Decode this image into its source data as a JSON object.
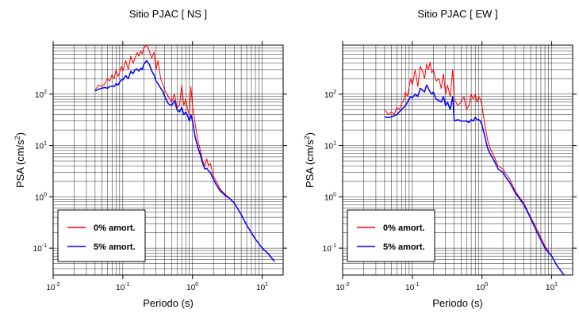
{
  "chart_data": [
    {
      "type": "line",
      "title": "Sitio PJAC [ NS ]",
      "xlabel": "Periodo (s)",
      "ylabel_main": "PSA (cm/s",
      "ylabel_sup": "2",
      "ylabel_end": ")",
      "xscale": "log",
      "yscale": "log",
      "xlim": [
        0.01,
        20
      ],
      "ylim": [
        0.03,
        900
      ],
      "grid": true,
      "legend_position": "bottom-left",
      "x_ticks": [
        {
          "base": "10",
          "exp": "-2",
          "value": 0.01
        },
        {
          "base": "10",
          "exp": "-1",
          "value": 0.1
        },
        {
          "base": "10",
          "exp": "0",
          "value": 1
        },
        {
          "base": "10",
          "exp": "1",
          "value": 10
        }
      ],
      "y_ticks": [
        {
          "base": "10",
          "exp": "-1",
          "value": 0.1
        },
        {
          "base": "10",
          "exp": "0",
          "value": 1
        },
        {
          "base": "10",
          "exp": "1",
          "value": 10
        },
        {
          "base": "10",
          "exp": "2",
          "value": 100
        }
      ],
      "series": [
        {
          "name": "0% amort.",
          "color": "#ff0000",
          "x": [
            0.04,
            0.045,
            0.05,
            0.055,
            0.06,
            0.065,
            0.07,
            0.075,
            0.08,
            0.085,
            0.09,
            0.095,
            0.1,
            0.11,
            0.12,
            0.13,
            0.14,
            0.15,
            0.16,
            0.17,
            0.18,
            0.19,
            0.2,
            0.22,
            0.24,
            0.26,
            0.28,
            0.3,
            0.32,
            0.35,
            0.38,
            0.4,
            0.45,
            0.5,
            0.55,
            0.6,
            0.65,
            0.7,
            0.75,
            0.8,
            0.85,
            0.9,
            0.95,
            1.0,
            1.1,
            1.2,
            1.3,
            1.4,
            1.5,
            1.6,
            1.7,
            1.8,
            2.0,
            2.2,
            2.5,
            3.0,
            3.5,
            4.0,
            5.0,
            6.0,
            8.0,
            10.0,
            12.0,
            15.0
          ],
          "y": [
            120,
            150,
            140,
            160,
            200,
            180,
            240,
            200,
            300,
            220,
            260,
            350,
            280,
            450,
            300,
            550,
            400,
            500,
            650,
            550,
            700,
            600,
            800,
            900,
            700,
            500,
            650,
            300,
            450,
            200,
            150,
            120,
            90,
            70,
            100,
            55,
            60,
            150,
            60,
            80,
            50,
            40,
            140,
            60,
            25,
            12,
            8,
            5,
            4,
            5.5,
            4,
            4.5,
            2.5,
            2.0,
            1.4,
            1.1,
            0.9,
            0.75,
            0.45,
            0.28,
            0.15,
            0.1,
            0.08,
            0.055
          ]
        },
        {
          "name": "5% amort.",
          "color": "#0000ff",
          "x": [
            0.04,
            0.045,
            0.05,
            0.055,
            0.06,
            0.065,
            0.07,
            0.075,
            0.08,
            0.085,
            0.09,
            0.095,
            0.1,
            0.11,
            0.12,
            0.13,
            0.14,
            0.15,
            0.16,
            0.17,
            0.18,
            0.19,
            0.2,
            0.22,
            0.24,
            0.26,
            0.28,
            0.3,
            0.32,
            0.35,
            0.38,
            0.4,
            0.45,
            0.5,
            0.55,
            0.6,
            0.65,
            0.7,
            0.75,
            0.8,
            0.85,
            0.9,
            0.95,
            1.0,
            1.1,
            1.2,
            1.3,
            1.4,
            1.5,
            1.6,
            1.7,
            1.8,
            2.0,
            2.2,
            2.5,
            3.0,
            3.5,
            4.0,
            5.0,
            6.0,
            8.0,
            10.0,
            12.0,
            15.0
          ],
          "y": [
            115,
            125,
            130,
            135,
            130,
            140,
            145,
            140,
            160,
            150,
            170,
            190,
            190,
            230,
            200,
            280,
            250,
            300,
            310,
            280,
            320,
            300,
            380,
            450,
            380,
            280,
            240,
            180,
            160,
            130,
            110,
            90,
            65,
            60,
            75,
            50,
            45,
            55,
            40,
            45,
            38,
            30,
            40,
            30,
            14,
            9,
            6.5,
            4.5,
            3.5,
            3.6,
            3.2,
            3.0,
            2.2,
            1.7,
            1.3,
            1.05,
            0.9,
            0.75,
            0.45,
            0.28,
            0.15,
            0.1,
            0.08,
            0.055
          ]
        }
      ]
    },
    {
      "type": "line",
      "title": "Sitio PJAC [ EW ]",
      "xlabel": "Periodo (s)",
      "ylabel_main": "PSA (cm/s",
      "ylabel_sup": "2",
      "ylabel_end": ")",
      "xscale": "log",
      "yscale": "log",
      "xlim": [
        0.01,
        20
      ],
      "ylim": [
        0.03,
        900
      ],
      "grid": true,
      "legend_position": "bottom-left",
      "x_ticks": [
        {
          "base": "10",
          "exp": "-2",
          "value": 0.01
        },
        {
          "base": "10",
          "exp": "-1",
          "value": 0.1
        },
        {
          "base": "10",
          "exp": "0",
          "value": 1
        },
        {
          "base": "10",
          "exp": "1",
          "value": 10
        }
      ],
      "y_ticks": [
        {
          "base": "10",
          "exp": "-1",
          "value": 0.1
        },
        {
          "base": "10",
          "exp": "0",
          "value": 1
        },
        {
          "base": "10",
          "exp": "1",
          "value": 10
        },
        {
          "base": "10",
          "exp": "2",
          "value": 100
        }
      ],
      "series": [
        {
          "name": "0% amort.",
          "color": "#ff0000",
          "x": [
            0.04,
            0.045,
            0.05,
            0.055,
            0.06,
            0.065,
            0.07,
            0.075,
            0.08,
            0.085,
            0.09,
            0.095,
            0.1,
            0.11,
            0.12,
            0.13,
            0.14,
            0.15,
            0.16,
            0.17,
            0.18,
            0.19,
            0.2,
            0.22,
            0.24,
            0.26,
            0.28,
            0.3,
            0.32,
            0.35,
            0.38,
            0.4,
            0.45,
            0.5,
            0.55,
            0.6,
            0.65,
            0.7,
            0.75,
            0.8,
            0.85,
            0.9,
            0.95,
            1.0,
            1.1,
            1.2,
            1.3,
            1.5,
            1.7,
            2.0,
            2.2,
            2.5,
            3.0,
            3.5,
            4.0,
            5.0,
            6.0,
            8.0,
            10.0,
            12.0,
            15.0
          ],
          "y": [
            50,
            40,
            45,
            40,
            55,
            50,
            65,
            75,
            110,
            90,
            140,
            200,
            150,
            300,
            140,
            350,
            280,
            200,
            380,
            300,
            420,
            260,
            300,
            180,
            200,
            130,
            250,
            100,
            150,
            90,
            300,
            80,
            60,
            70,
            90,
            50,
            60,
            100,
            80,
            100,
            70,
            90,
            80,
            60,
            25,
            13,
            9,
            6,
            4,
            3.5,
            2.8,
            2.2,
            1.3,
            0.95,
            0.75,
            0.4,
            0.25,
            0.11,
            0.07,
            0.045,
            0.03
          ]
        },
        {
          "name": "5% amort.",
          "color": "#0000ff",
          "x": [
            0.04,
            0.045,
            0.05,
            0.055,
            0.06,
            0.065,
            0.07,
            0.075,
            0.08,
            0.085,
            0.09,
            0.095,
            0.1,
            0.11,
            0.12,
            0.13,
            0.14,
            0.15,
            0.16,
            0.17,
            0.18,
            0.19,
            0.2,
            0.22,
            0.24,
            0.26,
            0.28,
            0.3,
            0.32,
            0.35,
            0.38,
            0.4,
            0.45,
            0.5,
            0.55,
            0.6,
            0.65,
            0.7,
            0.75,
            0.8,
            0.85,
            0.9,
            0.95,
            1.0,
            1.1,
            1.2,
            1.3,
            1.5,
            1.7,
            2.0,
            2.2,
            2.5,
            3.0,
            3.5,
            4.0,
            5.0,
            6.0,
            8.0,
            10.0,
            12.0,
            15.0
          ],
          "y": [
            36,
            35,
            36,
            38,
            40,
            45,
            50,
            55,
            60,
            70,
            80,
            90,
            85,
            100,
            90,
            130,
            120,
            110,
            150,
            130,
            110,
            100,
            110,
            80,
            75,
            70,
            90,
            60,
            70,
            50,
            90,
            30,
            32,
            30,
            30,
            30,
            28,
            32,
            30,
            35,
            32,
            32,
            30,
            25,
            15,
            9,
            7,
            5,
            3.5,
            3.0,
            2.4,
            1.9,
            1.2,
            0.9,
            0.7,
            0.38,
            0.22,
            0.1,
            0.07,
            0.045,
            0.03
          ]
        }
      ]
    }
  ]
}
